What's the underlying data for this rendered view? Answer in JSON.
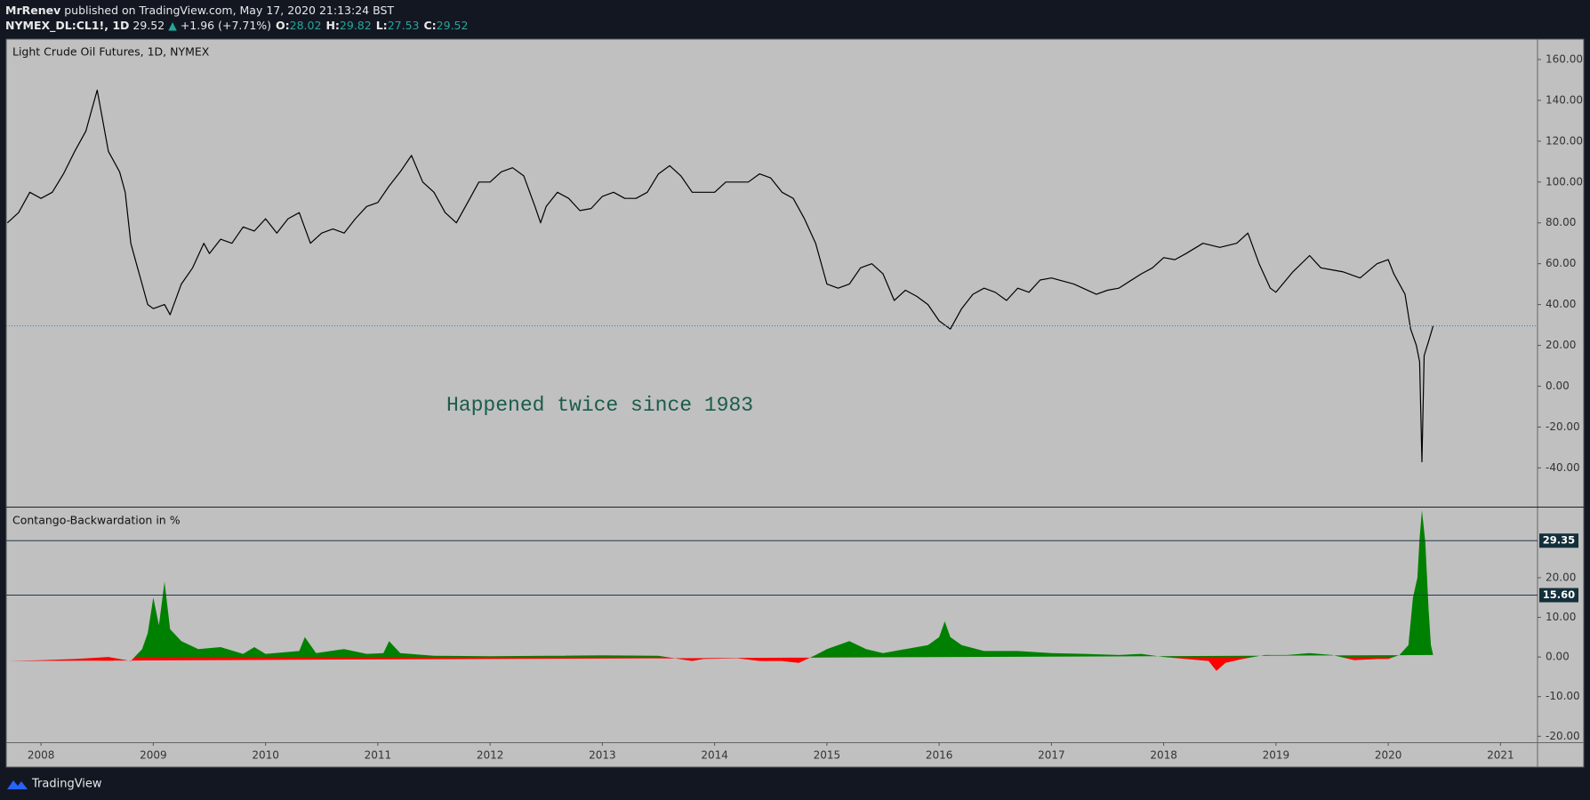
{
  "header": {
    "author": "MrRenev",
    "published": "published on TradingView.com, May 17, 2020 21:13:24 BST",
    "symbol": "NYMEX_DL:CL1!, 1D",
    "last": "29.52",
    "arrow": "▲",
    "change": "+1.96 (+7.71%)",
    "ohlc": [
      {
        "key": "O:",
        "value": "28.02"
      },
      {
        "key": "H:",
        "value": "29.82"
      },
      {
        "key": "L:",
        "value": "27.53"
      },
      {
        "key": "C:",
        "value": "29.52"
      }
    ]
  },
  "footer": {
    "brand": "TradingView"
  },
  "chart_data": [
    {
      "type": "line",
      "title": "Light Crude Oil Futures, 1D, NYMEX",
      "annotation": "Happened twice since 1983",
      "color": "#000000",
      "last_price": 29.52,
      "last_price_color": "#2a7fb0",
      "xlim": [
        2007.69,
        2021.33
      ],
      "ylim": [
        -59,
        170
      ],
      "yticks": [
        {
          "value": -40,
          "label": "-40.00"
        },
        {
          "value": -20,
          "label": "-20.00"
        },
        {
          "value": 0,
          "label": "0.00"
        },
        {
          "value": 20,
          "label": "20.00"
        },
        {
          "value": 40,
          "label": "40.00"
        },
        {
          "value": 60,
          "label": "60.00"
        },
        {
          "value": 80,
          "label": "80.00"
        },
        {
          "value": 100,
          "label": "100.00"
        },
        {
          "value": 120,
          "label": "120.00"
        },
        {
          "value": 140,
          "label": "140.00"
        },
        {
          "value": 160,
          "label": "160.00"
        }
      ],
      "x": [
        2007.7,
        2007.8,
        2007.9,
        2008.0,
        2008.1,
        2008.2,
        2008.3,
        2008.4,
        2008.45,
        2008.5,
        2008.55,
        2008.6,
        2008.7,
        2008.75,
        2008.8,
        2008.85,
        2008.9,
        2008.95,
        2009.0,
        2009.1,
        2009.15,
        2009.25,
        2009.35,
        2009.45,
        2009.5,
        2009.6,
        2009.7,
        2009.8,
        2009.9,
        2010.0,
        2010.1,
        2010.2,
        2010.3,
        2010.4,
        2010.5,
        2010.6,
        2010.7,
        2010.8,
        2010.9,
        2011.0,
        2011.1,
        2011.2,
        2011.3,
        2011.4,
        2011.5,
        2011.6,
        2011.7,
        2011.8,
        2011.9,
        2012.0,
        2012.1,
        2012.2,
        2012.3,
        2012.4,
        2012.45,
        2012.5,
        2012.6,
        2012.7,
        2012.8,
        2012.9,
        2013.0,
        2013.1,
        2013.2,
        2013.3,
        2013.4,
        2013.5,
        2013.6,
        2013.7,
        2013.8,
        2013.9,
        2014.0,
        2014.1,
        2014.2,
        2014.3,
        2014.4,
        2014.5,
        2014.6,
        2014.7,
        2014.8,
        2014.9,
        2015.0,
        2015.1,
        2015.2,
        2015.3,
        2015.4,
        2015.5,
        2015.6,
        2015.7,
        2015.8,
        2015.9,
        2016.0,
        2016.1,
        2016.2,
        2016.3,
        2016.4,
        2016.5,
        2016.6,
        2016.7,
        2016.8,
        2016.9,
        2017.0,
        2017.2,
        2017.4,
        2017.5,
        2017.6,
        2017.8,
        2017.9,
        2018.0,
        2018.1,
        2018.2,
        2018.35,
        2018.5,
        2018.65,
        2018.75,
        2018.85,
        2018.95,
        2019.0,
        2019.15,
        2019.3,
        2019.4,
        2019.5,
        2019.6,
        2019.75,
        2019.9,
        2020.0,
        2020.05,
        2020.1,
        2020.15,
        2020.2,
        2020.25,
        2020.28,
        2020.3,
        2020.32,
        2020.36,
        2020.4
      ],
      "values": [
        80,
        85,
        95,
        92,
        95,
        104,
        115,
        125,
        135,
        145,
        130,
        115,
        105,
        95,
        70,
        60,
        50,
        40,
        38,
        40,
        35,
        50,
        58,
        70,
        65,
        72,
        70,
        78,
        76,
        82,
        75,
        82,
        85,
        70,
        75,
        77,
        75,
        82,
        88,
        90,
        98,
        105,
        113,
        100,
        95,
        85,
        80,
        90,
        100,
        100,
        105,
        107,
        103,
        88,
        80,
        88,
        95,
        92,
        86,
        87,
        93,
        95,
        92,
        92,
        95,
        104,
        108,
        103,
        95,
        95,
        95,
        100,
        100,
        100,
        104,
        102,
        95,
        92,
        82,
        70,
        50,
        48,
        50,
        58,
        60,
        55,
        42,
        47,
        44,
        40,
        32,
        28,
        38,
        45,
        48,
        46,
        42,
        48,
        46,
        52,
        53,
        50,
        45,
        47,
        48,
        55,
        58,
        63,
        62,
        65,
        70,
        68,
        70,
        75,
        60,
        48,
        46,
        56,
        64,
        58,
        57,
        56,
        53,
        60,
        62,
        55,
        50,
        45,
        28,
        20,
        12,
        -37,
        15,
        22,
        29.52
      ]
    },
    {
      "type": "area",
      "title": "Contango-Backwardation in %",
      "colors": {
        "positive": "#008000",
        "negative": "#ff0000"
      },
      "levels": [
        29.35,
        {
          "value": 15.6,
          "label": "15.60"
        }
      ],
      "xlim": [
        2007.69,
        2021.33
      ],
      "ylim": [
        -21.5,
        37.7
      ],
      "xticks": [
        2008,
        2009,
        2010,
        2011,
        2012,
        2013,
        2014,
        2015,
        2016,
        2017,
        2018,
        2019,
        2020,
        2021
      ],
      "yticks": [
        {
          "value": -20,
          "label": "-20.00"
        },
        {
          "value": -10,
          "label": "-10.00"
        },
        {
          "value": 0,
          "label": "0.00"
        },
        {
          "value": 10,
          "label": "10.00"
        },
        {
          "value": 20,
          "label": "20.00"
        }
      ],
      "x": [
        2007.7,
        2008.0,
        2008.3,
        2008.6,
        2008.8,
        2008.9,
        2008.95,
        2009.0,
        2009.05,
        2009.1,
        2009.15,
        2009.25,
        2009.4,
        2009.6,
        2009.8,
        2009.9,
        2010.0,
        2010.3,
        2010.35,
        2010.45,
        2010.7,
        2010.9,
        2011.05,
        2011.1,
        2011.2,
        2011.5,
        2012.0,
        2012.5,
        2013.0,
        2013.5,
        2013.8,
        2013.9,
        2014.2,
        2014.4,
        2014.6,
        2014.75,
        2014.9,
        2015.0,
        2015.1,
        2015.2,
        2015.35,
        2015.5,
        2015.7,
        2015.9,
        2016.0,
        2016.05,
        2016.1,
        2016.2,
        2016.4,
        2016.7,
        2017.0,
        2017.3,
        2017.6,
        2017.8,
        2018.0,
        2018.2,
        2018.4,
        2018.47,
        2018.55,
        2018.7,
        2018.9,
        2019.1,
        2019.3,
        2019.5,
        2019.7,
        2019.9,
        2020.0,
        2020.1,
        2020.18,
        2020.22,
        2020.26,
        2020.28,
        2020.3,
        2020.33,
        2020.36,
        2020.38,
        2020.4
      ],
      "values": [
        -1,
        -0.8,
        -0.5,
        0,
        -1,
        2,
        6,
        15,
        8,
        19,
        7,
        4,
        2,
        2.5,
        0.8,
        2.5,
        0.8,
        1.5,
        5,
        1,
        2,
        0.8,
        1,
        4,
        1,
        0.3,
        0.2,
        0.3,
        0.4,
        0.3,
        -1,
        -0.5,
        -0.3,
        -1,
        -1,
        -1.5,
        0.5,
        2,
        3,
        4,
        2,
        1,
        2,
        3,
        5,
        9,
        5,
        3,
        1.5,
        1.5,
        1,
        0.8,
        0.5,
        0.8,
        0,
        -0.5,
        -1,
        -3.5,
        -1.5,
        -0.5,
        0.5,
        0.5,
        1,
        0.5,
        -0.8,
        -0.5,
        -0.5,
        0.5,
        3,
        15,
        20,
        30,
        37,
        29,
        12,
        3,
        0.5
      ]
    }
  ]
}
